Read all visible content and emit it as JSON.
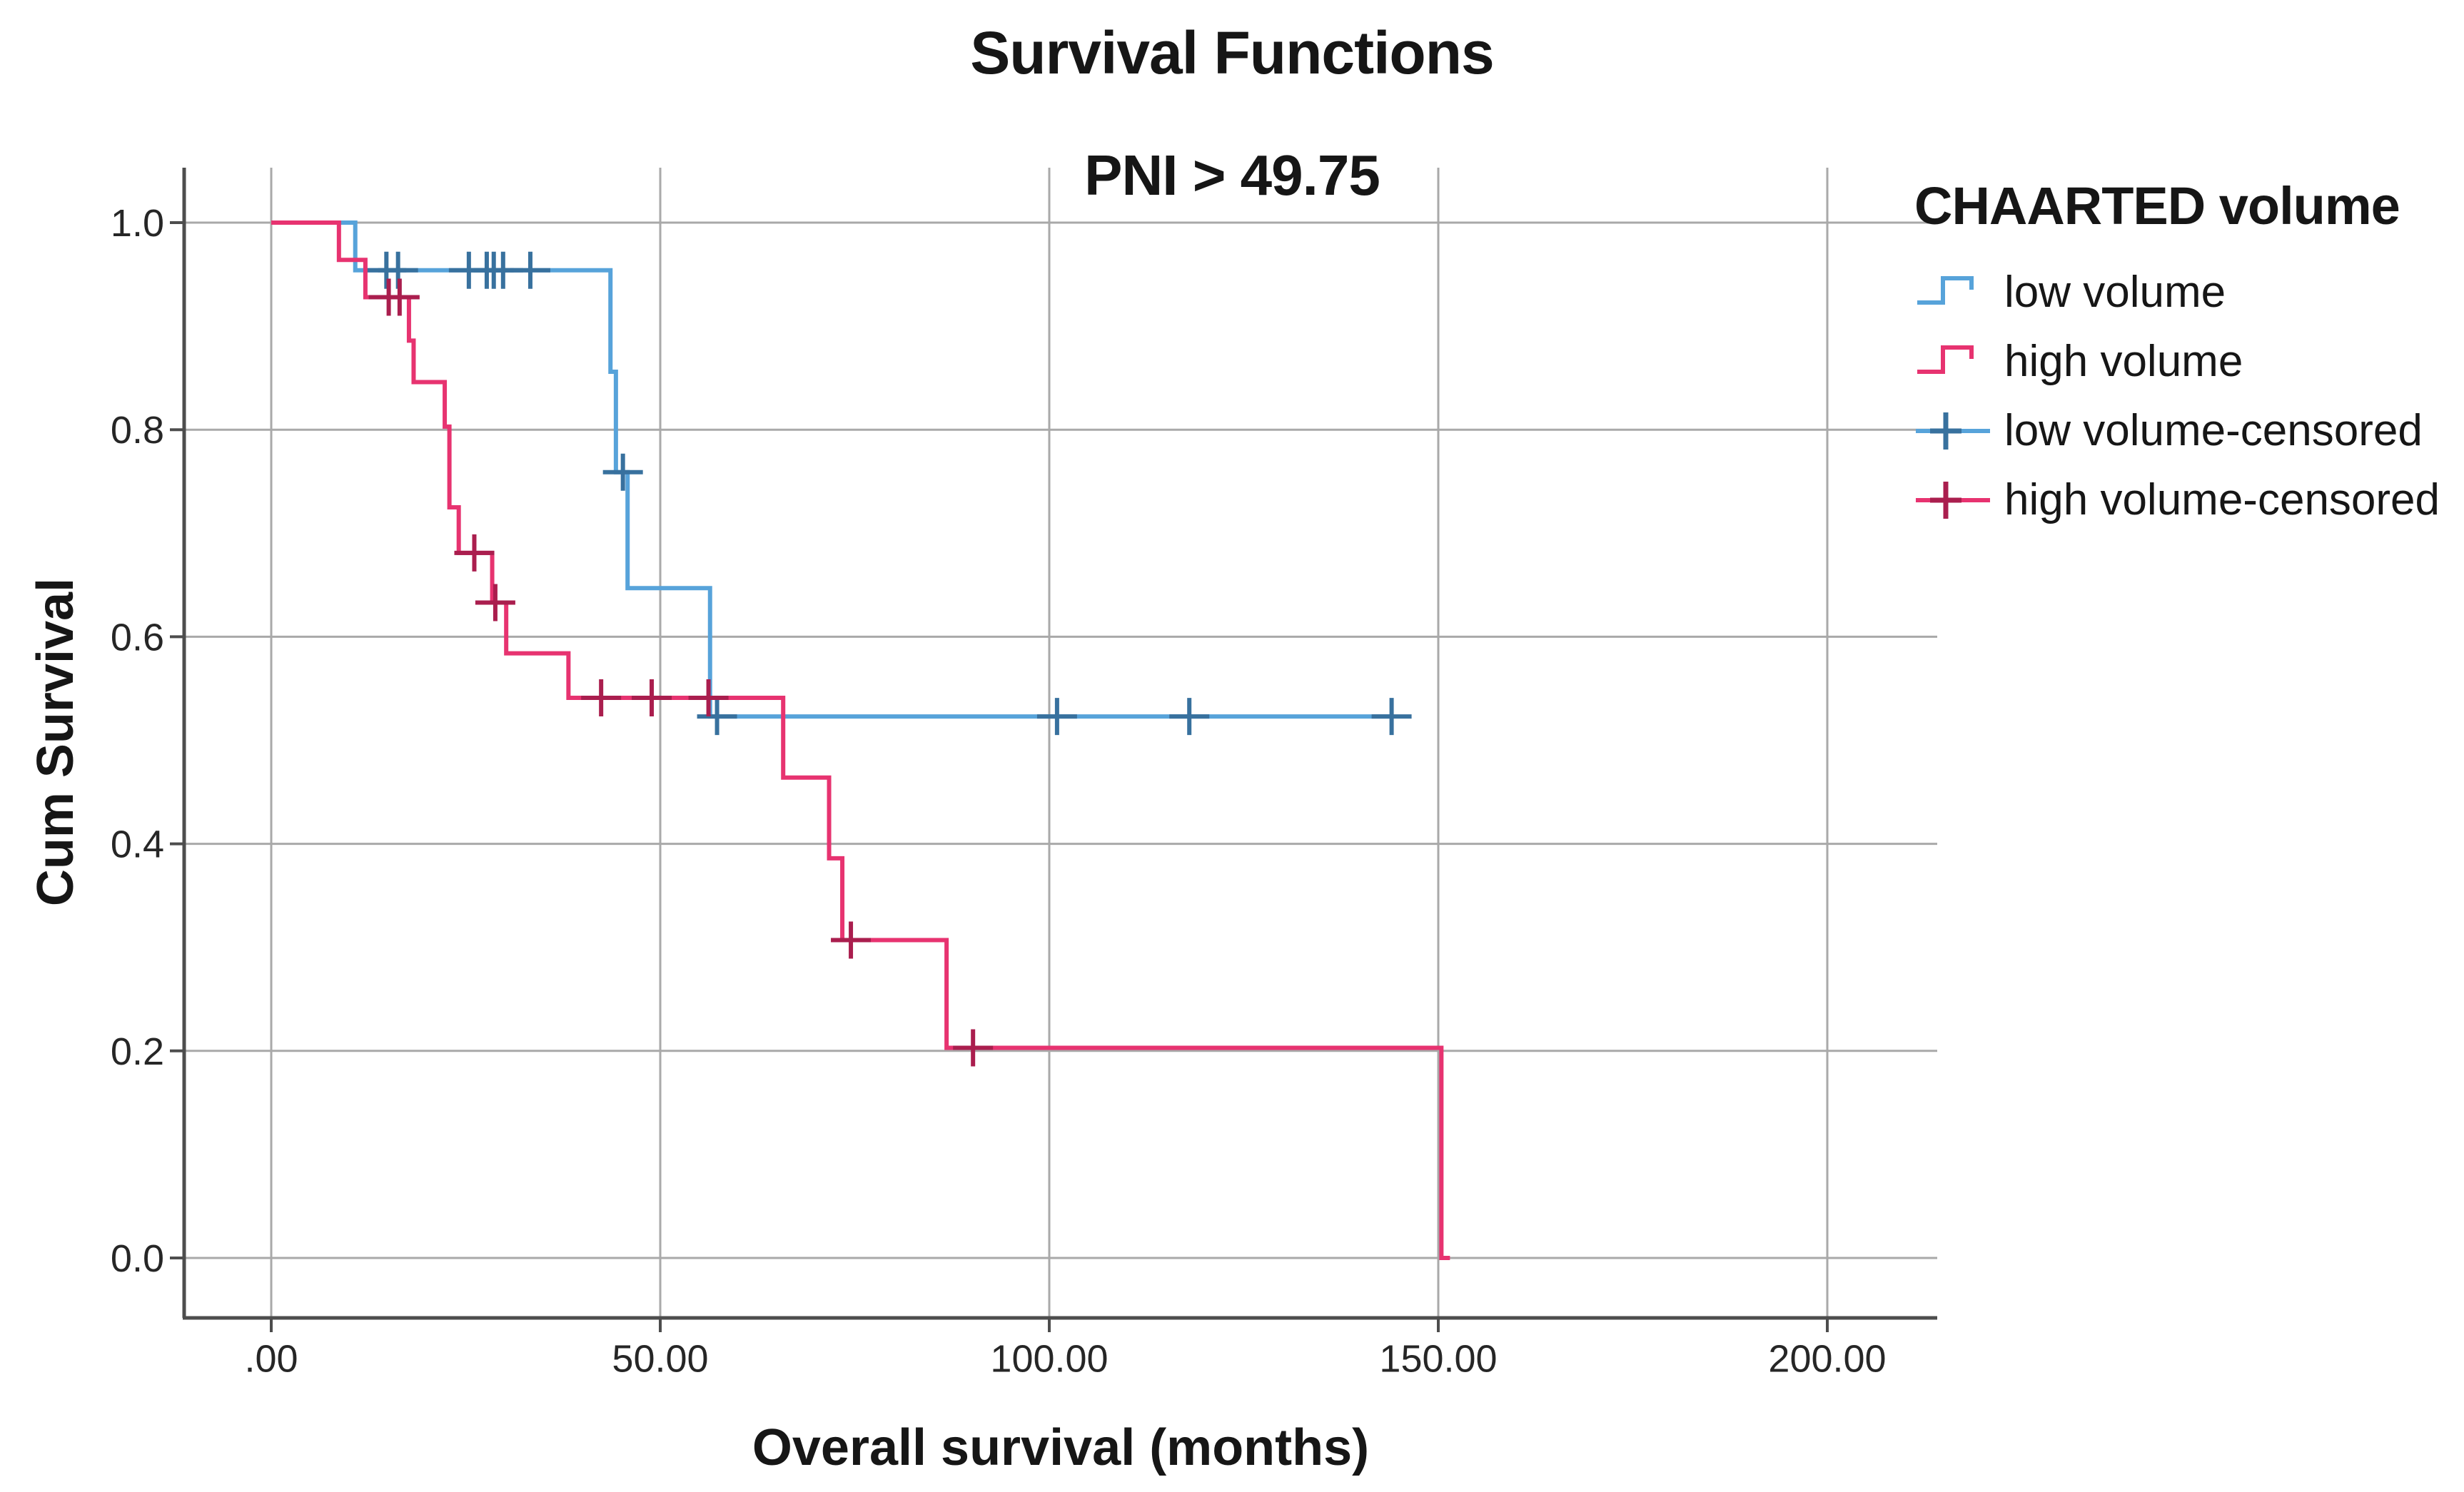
{
  "title": "Survival Functions",
  "subtitle": "PNI > 49.75",
  "chart_data": {
    "type": "line",
    "variant": "kaplan_meier_step_plot",
    "title": "Survival Functions",
    "subtitle": "PNI > 49.75",
    "xlabel": "Overall survival (months)",
    "ylabel": "Cum Survival",
    "xlim": [
      -11,
      214
    ],
    "ylim": [
      -0.06,
      1.06
    ],
    "grid": true,
    "grid_color": "#a9a9a9",
    "axis_color": "#4d4d4d",
    "text_color": "#262626",
    "x_ticks": {
      "values": [
        0,
        50,
        100,
        150,
        200
      ],
      "labels": [
        ".00",
        "50.00",
        "100.00",
        "150.00",
        "200.00"
      ]
    },
    "y_ticks": {
      "values": [
        0.0,
        0.2,
        0.4,
        0.6,
        0.8,
        1.0
      ],
      "labels": [
        "0.0",
        "0.2",
        "0.4",
        "0.6",
        "0.8",
        "1.0"
      ]
    },
    "legend": {
      "title": "CHAARTED volume",
      "position": "right",
      "items": [
        {
          "label": "low volume",
          "glyph": "step",
          "color": "#57a3da",
          "plus_color": "#38719e"
        },
        {
          "label": "high volume",
          "glyph": "step",
          "color": "#e73370",
          "plus_color": "#aa1e4e"
        },
        {
          "label": "low volume-censored",
          "glyph": "plus",
          "color": "#57a3da",
          "plus_color": "#38719e"
        },
        {
          "label": "high volume-censored",
          "glyph": "plus",
          "color": "#e73370",
          "plus_color": "#aa1e4e"
        }
      ]
    },
    "series": [
      {
        "name": "low volume",
        "color": "#57a3da",
        "censor_color": "#38719e",
        "levels": [
          [
            0,
            1.0
          ],
          [
            10.8,
            0.954
          ],
          [
            43.6,
            0.856
          ],
          [
            44.3,
            0.759
          ],
          [
            45.8,
            0.647
          ],
          [
            56.4,
            0.523
          ]
        ],
        "end_time": 144,
        "censored": [
          [
            14.8,
            0.954
          ],
          [
            16.3,
            0.954
          ],
          [
            25.4,
            0.954
          ],
          [
            27.7,
            0.954
          ],
          [
            28.6,
            0.954
          ],
          [
            29.8,
            0.954
          ],
          [
            33.3,
            0.954
          ],
          [
            45.2,
            0.759
          ],
          [
            57.3,
            0.523
          ],
          [
            101,
            0.523
          ],
          [
            118,
            0.523
          ],
          [
            144,
            0.523
          ]
        ]
      },
      {
        "name": "high volume",
        "color": "#e73370",
        "censor_color": "#aa1e4e",
        "levels": [
          [
            0,
            1.0
          ],
          [
            8.7,
            0.964
          ],
          [
            12.1,
            0.928
          ],
          [
            17.7,
            0.886
          ],
          [
            18.3,
            0.846
          ],
          [
            22.3,
            0.803
          ],
          [
            22.9,
            0.725
          ],
          [
            24.1,
            0.681
          ],
          [
            28.4,
            0.633
          ],
          [
            30.2,
            0.584
          ],
          [
            38.2,
            0.541
          ],
          [
            65.8,
            0.464
          ],
          [
            71.7,
            0.386
          ],
          [
            73.4,
            0.307
          ],
          [
            86.8,
            0.203
          ],
          [
            150.4,
            0.0
          ]
        ],
        "end_time": 151.5,
        "censored": [
          [
            15.1,
            0.928
          ],
          [
            16.5,
            0.928
          ],
          [
            26.1,
            0.681
          ],
          [
            28.8,
            0.633
          ],
          [
            42.4,
            0.541
          ],
          [
            48.9,
            0.541
          ],
          [
            56.2,
            0.541
          ],
          [
            74.5,
            0.307
          ],
          [
            90.2,
            0.203
          ]
        ]
      }
    ]
  }
}
